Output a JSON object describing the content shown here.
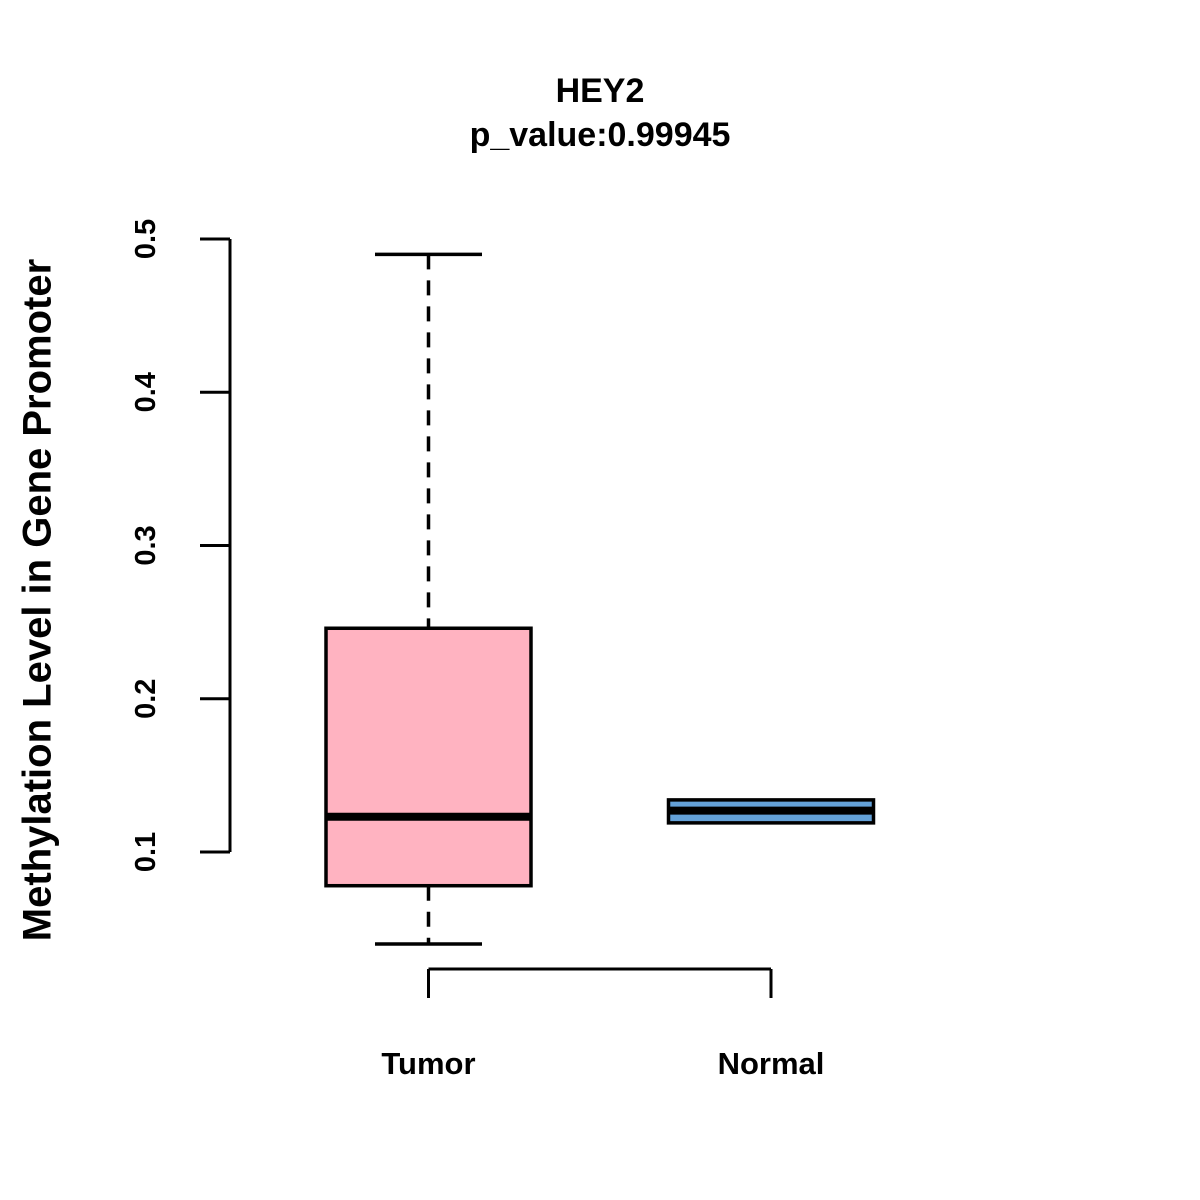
{
  "title": "HEY2",
  "subtitle": "p_value:0.99945",
  "y_axis": {
    "label": "Methylation Level in Gene Promoter",
    "tick_labels": [
      "0.1",
      "0.2",
      "0.3",
      "0.4",
      "0.5"
    ]
  },
  "x_axis": {
    "categories": [
      "Tumor",
      "Normal"
    ]
  },
  "chart_data": {
    "type": "boxplot",
    "title": "HEY2",
    "subtitle": "p_value:0.99945",
    "ylabel": "Methylation Level in Gene Promoter",
    "xlabel": "",
    "categories": [
      "Tumor",
      "Normal"
    ],
    "yticks": [
      0.1,
      0.2,
      0.3,
      0.4,
      0.5
    ],
    "axis_value_range": [
      0.1,
      0.5
    ],
    "grid": false,
    "legend": "none",
    "series": [
      {
        "name": "Tumor",
        "fill_color": "#FFB3C1",
        "whisker_low": 0.04,
        "q1": 0.078,
        "median": 0.123,
        "q3": 0.246,
        "whisker_high": 0.49
      },
      {
        "name": "Normal",
        "fill_color": "#64A1D8",
        "whisker_low": 0.118,
        "q1": 0.119,
        "median": 0.127,
        "q3": 0.134,
        "whisker_high": 0.135
      }
    ],
    "colors": {
      "box_border": "#000000",
      "median_line": "#000000",
      "axis": "#000000"
    }
  }
}
